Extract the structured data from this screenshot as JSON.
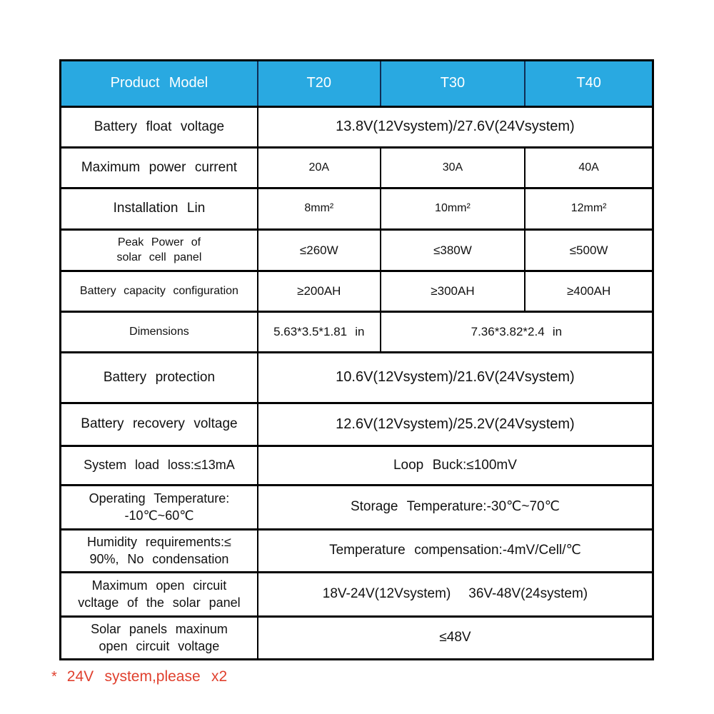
{
  "colors": {
    "header_bg": "#29a9e1",
    "header_text": "#ffffff",
    "header_divider": "#0f2d55",
    "border": "#000000",
    "footnote": "#e0402e",
    "text": "#111111"
  },
  "table": {
    "header": [
      {
        "text": "Product Model"
      },
      {
        "text": "T20"
      },
      {
        "text": "T30"
      },
      {
        "text": "T40"
      }
    ],
    "rows": [
      {
        "label_lines": [
          "Battery float voltage"
        ],
        "label_size": "",
        "cells": [
          {
            "text": "13.8V(12Vsystem)/27.6V(24Vsystem)",
            "span": 3,
            "size": "lg"
          }
        ]
      },
      {
        "label_lines": [
          "Maximum power current"
        ],
        "label_size": "",
        "cells": [
          {
            "text": "20A",
            "span": 1,
            "size": "sm"
          },
          {
            "text": "30A",
            "span": 1,
            "size": "sm"
          },
          {
            "text": "40A",
            "span": 1,
            "size": "sm"
          }
        ]
      },
      {
        "label_lines": [
          "Installation Lin"
        ],
        "label_size": "",
        "cells": [
          {
            "text": "8mm²",
            "span": 1,
            "size": "sm"
          },
          {
            "text": "10mm²",
            "span": 1,
            "size": "sm"
          },
          {
            "text": "12mm²",
            "span": 1,
            "size": "sm"
          }
        ]
      },
      {
        "label_lines": [
          "Peak Power of",
          "solar cell panel"
        ],
        "label_size": "sm",
        "cells": [
          {
            "text": "≤260W",
            "span": 1,
            "size": "md"
          },
          {
            "text": "≤380W",
            "span": 1,
            "size": "md"
          },
          {
            "text": "≤500W",
            "span": 1,
            "size": "md"
          }
        ]
      },
      {
        "label_lines": [
          "Battery capacity configuration"
        ],
        "label_size": "sm",
        "cells": [
          {
            "text": "≥200AH",
            "span": 1,
            "size": "md"
          },
          {
            "text": "≥300AH",
            "span": 1,
            "size": "md"
          },
          {
            "text": "≥400AH",
            "span": 1,
            "size": "md"
          }
        ]
      },
      {
        "label_lines": [
          "Dimensions"
        ],
        "label_size": "sm",
        "cells": [
          {
            "text": "5.63*3.5*1.81 in",
            "span": 1,
            "size": "md"
          },
          {
            "text": "7.36*3.82*2.4 in",
            "span": 2,
            "size": "md"
          }
        ]
      },
      {
        "label_lines": [
          "Battery protection"
        ],
        "label_size": "",
        "cells": [
          {
            "text": "10.6V(12Vsystem)/21.6V(24Vsystem)",
            "span": 3,
            "size": "lg"
          }
        ]
      },
      {
        "label_lines": [
          "Battery recovery voltage"
        ],
        "label_size": "",
        "cells": [
          {
            "text": "12.6V(12Vsystem)/25.2V(24Vsystem)",
            "span": 3,
            "size": "lg"
          }
        ]
      },
      {
        "label_lines": [
          "System load loss:≤13mA"
        ],
        "label_size": "md",
        "cells": [
          {
            "text": "Loop Buck:≤100mV",
            "span": 3,
            "size": ""
          }
        ]
      },
      {
        "label_lines": [
          "Operating Temperature:",
          "-10℃~60℃"
        ],
        "label_size": "md",
        "cells": [
          {
            "text": "Storage Temperature:-30℃~70℃",
            "span": 3,
            "size": ""
          }
        ]
      },
      {
        "label_lines": [
          "Humidity requirements:≤",
          "90%, No condensation"
        ],
        "label_size": "md",
        "cells": [
          {
            "text": "Temperature compensation:-4mV/Cell/℃",
            "span": 3,
            "size": ""
          }
        ]
      },
      {
        "label_lines": [
          "Maximum open circuit",
          "vcltage of the solar panel"
        ],
        "label_size": "md",
        "cells": [
          {
            "text": "18V-24V(12Vsystem)  36V-48V(24system)",
            "span": 3,
            "size": ""
          }
        ]
      },
      {
        "label_lines": [
          "Solar panels maxinum",
          "open circuit voltage"
        ],
        "label_size": "md",
        "cells": [
          {
            "text": "≤48V",
            "span": 3,
            "size": ""
          }
        ]
      }
    ]
  },
  "footnote": {
    "marker": "*",
    "text": "24V system,please x2"
  }
}
